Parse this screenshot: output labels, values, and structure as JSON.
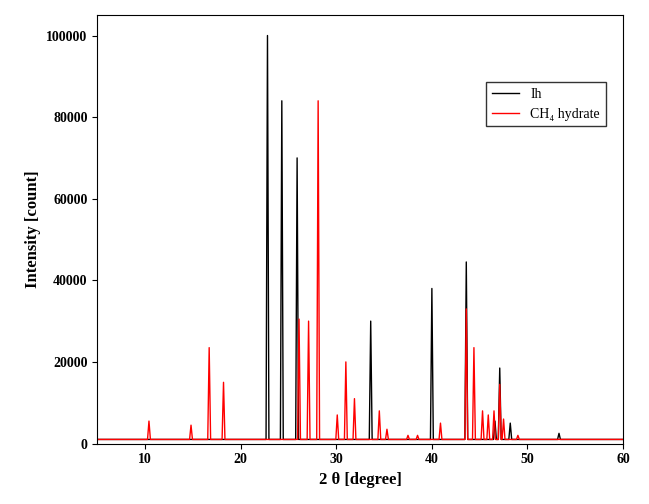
{
  "chart_data": {
    "type": "line",
    "x_label": "2 θ [degree]",
    "y_label": "Intensity [count]",
    "xlim": [
      5,
      60
    ],
    "xticks": [
      10,
      20,
      30,
      40,
      50,
      60
    ],
    "ylim": [
      0,
      105000
    ],
    "yticks": [
      0,
      20000,
      40000,
      60000,
      80000,
      100000
    ],
    "legend": "upper right",
    "series": [
      {
        "name": "Ih",
        "color": "#000000",
        "x": [
          5,
          22.65,
          22.8,
          22.95,
          24.15,
          24.3,
          24.45,
          25.75,
          25.9,
          26.05,
          33.45,
          33.6,
          33.75,
          39.85,
          40.0,
          40.15,
          43.45,
          43.6,
          43.75,
          46.45,
          46.6,
          46.75,
          46.95,
          47.1,
          47.25,
          48.05,
          48.2,
          48.35,
          53.15,
          53.3,
          53.45,
          60
        ],
        "values": [
          1000,
          1000,
          100000,
          1000,
          1000,
          84000,
          1000,
          1000,
          70000,
          1000,
          1000,
          30000,
          1000,
          1000,
          38000,
          1000,
          1000,
          44500,
          1000,
          1000,
          5500,
          1000,
          1000,
          18500,
          1000,
          1000,
          5000,
          1000,
          1000,
          2500,
          1000,
          1000
        ]
      },
      {
        "name": "CH₄ hydrate",
        "color": "#ff0000",
        "x": [
          5,
          10.25,
          10.4,
          10.55,
          14.65,
          14.8,
          14.95,
          16.55,
          16.7,
          16.85,
          18.05,
          18.2,
          18.35,
          25.95,
          26.1,
          26.25,
          26.95,
          27.1,
          27.25,
          27.95,
          28.1,
          28.25,
          29.95,
          30.1,
          30.25,
          30.85,
          31.0,
          31.15,
          31.75,
          31.9,
          32.05,
          34.35,
          34.5,
          34.65,
          35.15,
          35.3,
          35.45,
          37.35,
          37.5,
          37.65,
          38.35,
          38.5,
          38.65,
          40.75,
          40.9,
          41.05,
          43.45,
          43.6,
          43.75,
          44.25,
          44.4,
          44.55,
          45.15,
          45.3,
          45.45,
          45.75,
          45.9,
          46.05,
          46.35,
          46.5,
          46.65,
          46.95,
          47.1,
          47.25,
          47.35,
          47.5,
          47.65,
          48.85,
          49.0,
          49.15,
          60
        ],
        "values": [
          1000,
          1000,
          5500,
          1000,
          1000,
          4500,
          1000,
          1000,
          23500,
          1000,
          1000,
          15000,
          1000,
          1000,
          30500,
          1000,
          1000,
          30000,
          1000,
          1000,
          84000,
          1000,
          1000,
          7000,
          1000,
          1000,
          20000,
          1000,
          1000,
          11000,
          1000,
          1000,
          8000,
          1000,
          1000,
          3500,
          1000,
          1000,
          2000,
          1000,
          1000,
          2000,
          1000,
          1000,
          5000,
          1000,
          1000,
          33000,
          1000,
          1000,
          23500,
          1000,
          1000,
          8000,
          1000,
          1000,
          7000,
          1000,
          1000,
          8000,
          1000,
          1000,
          14500,
          1000,
          1000,
          6000,
          1000,
          1000,
          2000,
          1000,
          1000
        ]
      }
    ]
  }
}
